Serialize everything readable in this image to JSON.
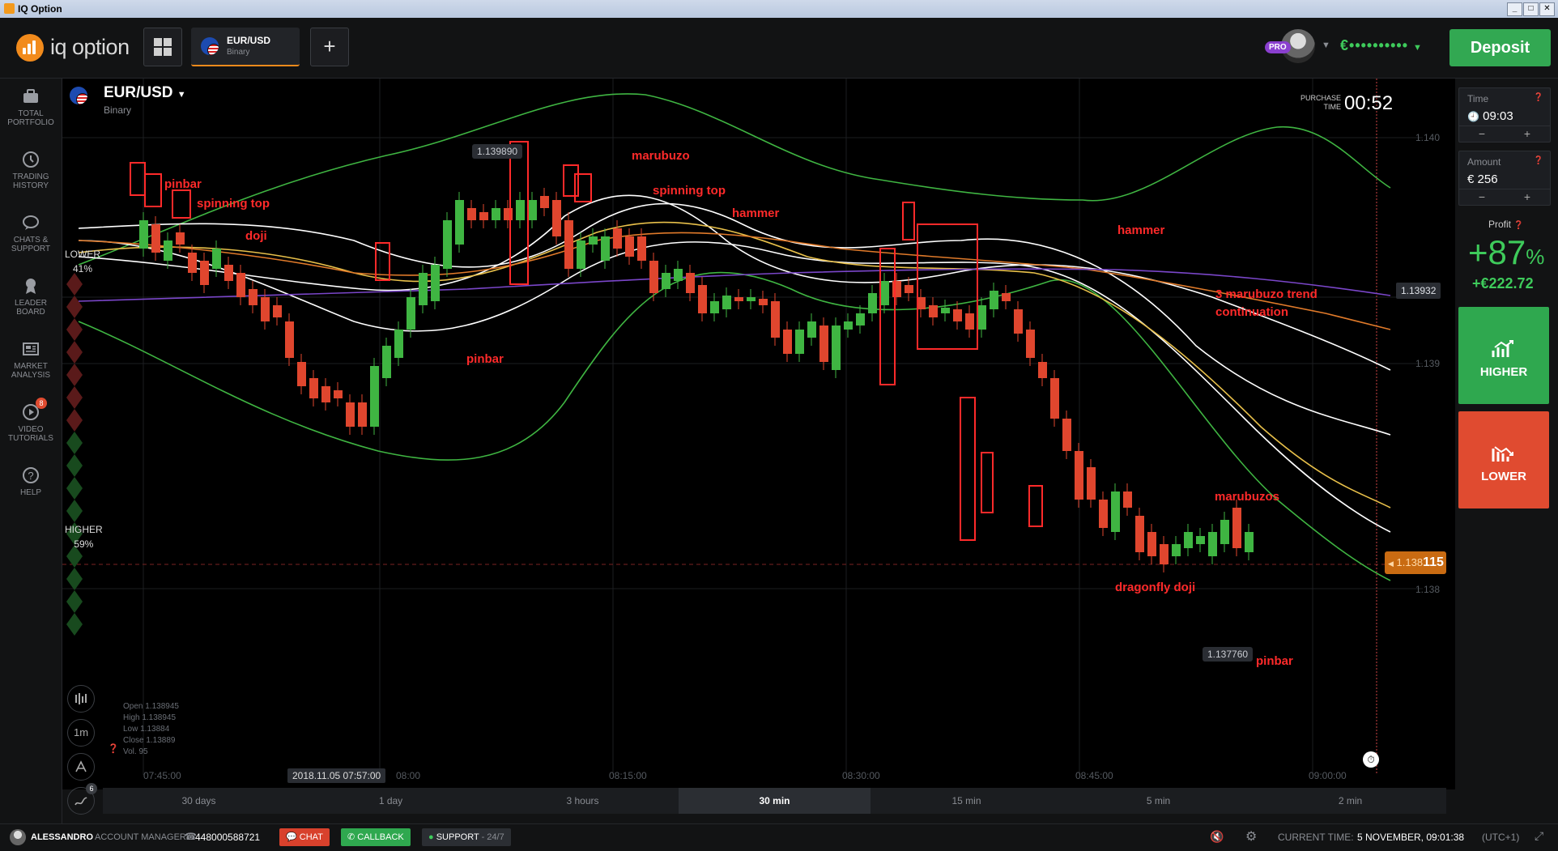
{
  "window": {
    "title": "IQ Option"
  },
  "header": {
    "logo": "iq option",
    "tab": {
      "symbol": "EUR/USD",
      "type": "Binary"
    },
    "pro_badge": "PRO",
    "balance": "€••••••••••",
    "deposit_label": "Deposit"
  },
  "sidebar": {
    "items": [
      {
        "label": "TOTAL PORTFOLIO",
        "icon": "briefcase-icon"
      },
      {
        "label": "TRADING HISTORY",
        "icon": "history-icon"
      },
      {
        "label": "CHATS & SUPPORT",
        "icon": "chat-icon"
      },
      {
        "label": "LEADER BOARD",
        "icon": "trophy-icon"
      },
      {
        "label": "MARKET ANALYSIS",
        "icon": "newspaper-icon"
      },
      {
        "label": "VIDEO TUTORIALS",
        "icon": "play-icon",
        "badge": "8"
      },
      {
        "label": "HELP",
        "icon": "help-icon"
      }
    ]
  },
  "chart": {
    "asset": "EUR/USD",
    "asset_type": "Binary",
    "purchase_label": "PURCHASE TIME",
    "purchase_time": "00:52",
    "lower_label": "LOWER",
    "lower_pct": "41%",
    "higher_label": "HIGHER",
    "higher_pct": "59%",
    "current_price": {
      "prefix": "1.138",
      "suffix": "115"
    },
    "y_ticks": [
      "1.140",
      "1.13932",
      "1.139",
      "1.138"
    ],
    "x_ticks": [
      "07:45:00",
      "08:00",
      "08:15:00",
      "08:30:00",
      "08:45:00",
      "09:00:00"
    ],
    "date_tag": "2018.11.05 07:57:00",
    "high_tag": "1.139890",
    "low_tag": "1.137760",
    "ohlc": {
      "open": "Open  1.138945",
      "high": "High  1.138945",
      "low": "Low  1.13884",
      "close": "Close  1.13889",
      "vol": "Vol.  95"
    },
    "tools": [
      "chart-type-icon",
      "1m",
      "indicator-icon",
      "drawing-icon"
    ],
    "tools_badge": "6",
    "annotations": [
      "pinbar",
      "spinning top",
      "doji",
      "pinbar",
      "marubuzo",
      "spinning top",
      "hammer",
      "hammer",
      "3 marubuzo trend",
      "continuation",
      "marubuzos",
      "dragonfly doji",
      "pinbar"
    ]
  },
  "timeframes": [
    "30 days",
    "1 day",
    "3 hours",
    "30 min",
    "15 min",
    "5 min",
    "2 min"
  ],
  "timeframe_active": "30 min",
  "right_panel": {
    "time_label": "Time",
    "time_value": "09:03",
    "amount_label": "Amount",
    "amount_value": "€  256",
    "profit_label": "Profit",
    "profit_pct": "+87",
    "profit_pct_sign": "%",
    "profit_amount": "+€222.72",
    "higher_label": "HIGHER",
    "lower_label": "LOWER"
  },
  "footer": {
    "user": "ALESSANDRO",
    "account_manager_label": "ACCOUNT MANAGER",
    "phone": "448000588721",
    "chat": "CHAT",
    "callback": "CALLBACK",
    "support": "SUPPORT",
    "support_hours": "24/7",
    "current_time_label": "CURRENT TIME:",
    "current_time": "5 NOVEMBER, 09:01:38",
    "timezone": "(UTC+1)"
  },
  "colors": {
    "green": "#32a852",
    "red": "#e04b30",
    "orange": "#f28b1c",
    "annotation": "#ff2a2a"
  }
}
